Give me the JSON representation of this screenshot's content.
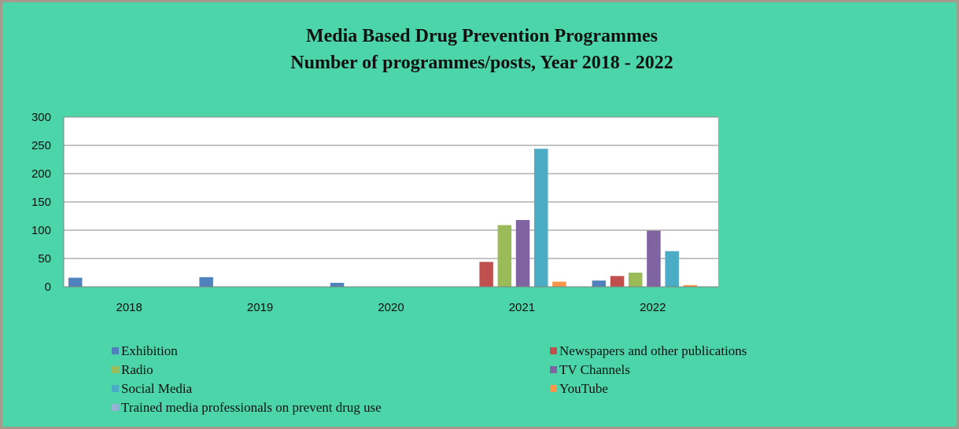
{
  "chart_data": {
    "type": "bar",
    "title": "Media Based Drug Prevention Programmes",
    "subtitle": "Number of programmes/posts, Year 2018 - 2022",
    "categories": [
      "2018",
      "2019",
      "2020",
      "2021",
      "2022"
    ],
    "ylim": [
      0,
      300
    ],
    "yticks": [
      "0",
      "50",
      "100",
      "150",
      "200",
      "250",
      "300"
    ],
    "grid": true,
    "legend_position": "bottom",
    "series": [
      {
        "name": "Exhibition",
        "color": "#4f81bd",
        "values": [
          16,
          17,
          7,
          0,
          11
        ]
      },
      {
        "name": "Newspapers and other publications",
        "color": "#c0504d",
        "values": [
          0,
          0,
          0,
          44,
          19
        ]
      },
      {
        "name": "Radio",
        "color": "#9bbb59",
        "values": [
          0,
          0,
          0,
          109,
          25
        ]
      },
      {
        "name": "TV Channels",
        "color": "#8064a2",
        "values": [
          0,
          0,
          0,
          118,
          99
        ]
      },
      {
        "name": "Social Media",
        "color": "#4bacc6",
        "values": [
          0,
          0,
          0,
          244,
          63
        ]
      },
      {
        "name": "YouTube",
        "color": "#f79646",
        "values": [
          0,
          0,
          0,
          9,
          3
        ]
      },
      {
        "name": "Trained media professionals on prevent drug use",
        "color": "#95b3d7",
        "values": [
          0,
          0,
          0,
          0,
          0
        ]
      }
    ]
  }
}
